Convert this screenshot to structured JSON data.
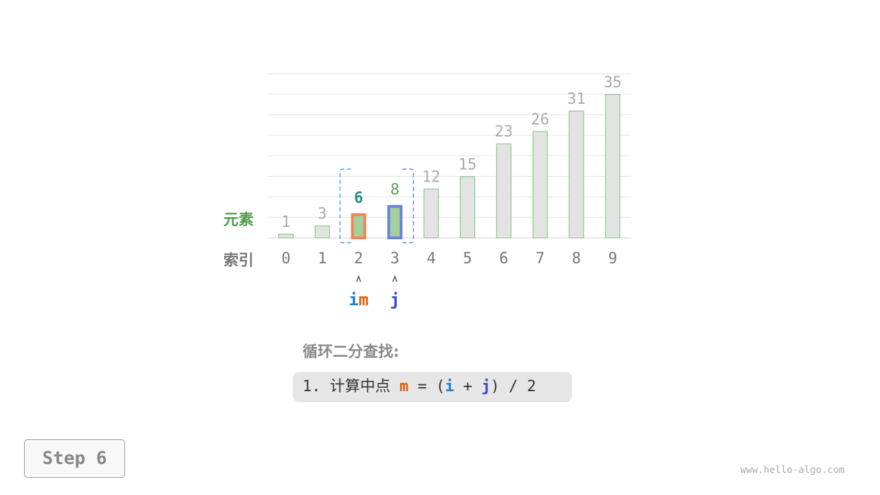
{
  "labels": {
    "elements": "元素",
    "index": "索引"
  },
  "chart_data": {
    "type": "bar",
    "categories": [
      "0",
      "1",
      "2",
      "3",
      "4",
      "5",
      "6",
      "7",
      "8",
      "9"
    ],
    "values": [
      1,
      3,
      6,
      8,
      12,
      15,
      23,
      26,
      31,
      35
    ],
    "ylim": [
      0,
      40
    ],
    "grid": true,
    "highlight": {
      "i": 2,
      "m": 2,
      "j": 3
    },
    "pointers": [
      {
        "index": 2,
        "labels": [
          "i",
          "m"
        ]
      },
      {
        "index": 3,
        "labels": [
          "j"
        ]
      }
    ]
  },
  "colors": {
    "i": "#1a7fcf",
    "m": "#e85a0c",
    "j": "#3348c8",
    "bar_fill": "#e3e3e3",
    "bar_stroke": "#7cbf7c",
    "active_fill": "#a6cfa0",
    "m_border": "#f5834f",
    "j_border": "#6a80dc",
    "value_m": "#2d8a7e",
    "value_j": "#5a9e5a",
    "elements_label": "#4e9a4a"
  },
  "title": "循环二分查找:",
  "formula": {
    "prefix": "1. 计算中点 ",
    "m": "m",
    "eq": " = (",
    "i": "i",
    "plus": " + ",
    "j": "j",
    "suffix": ") / 2"
  },
  "step_button": "Step 6",
  "watermark": "www.hello-algo.com"
}
